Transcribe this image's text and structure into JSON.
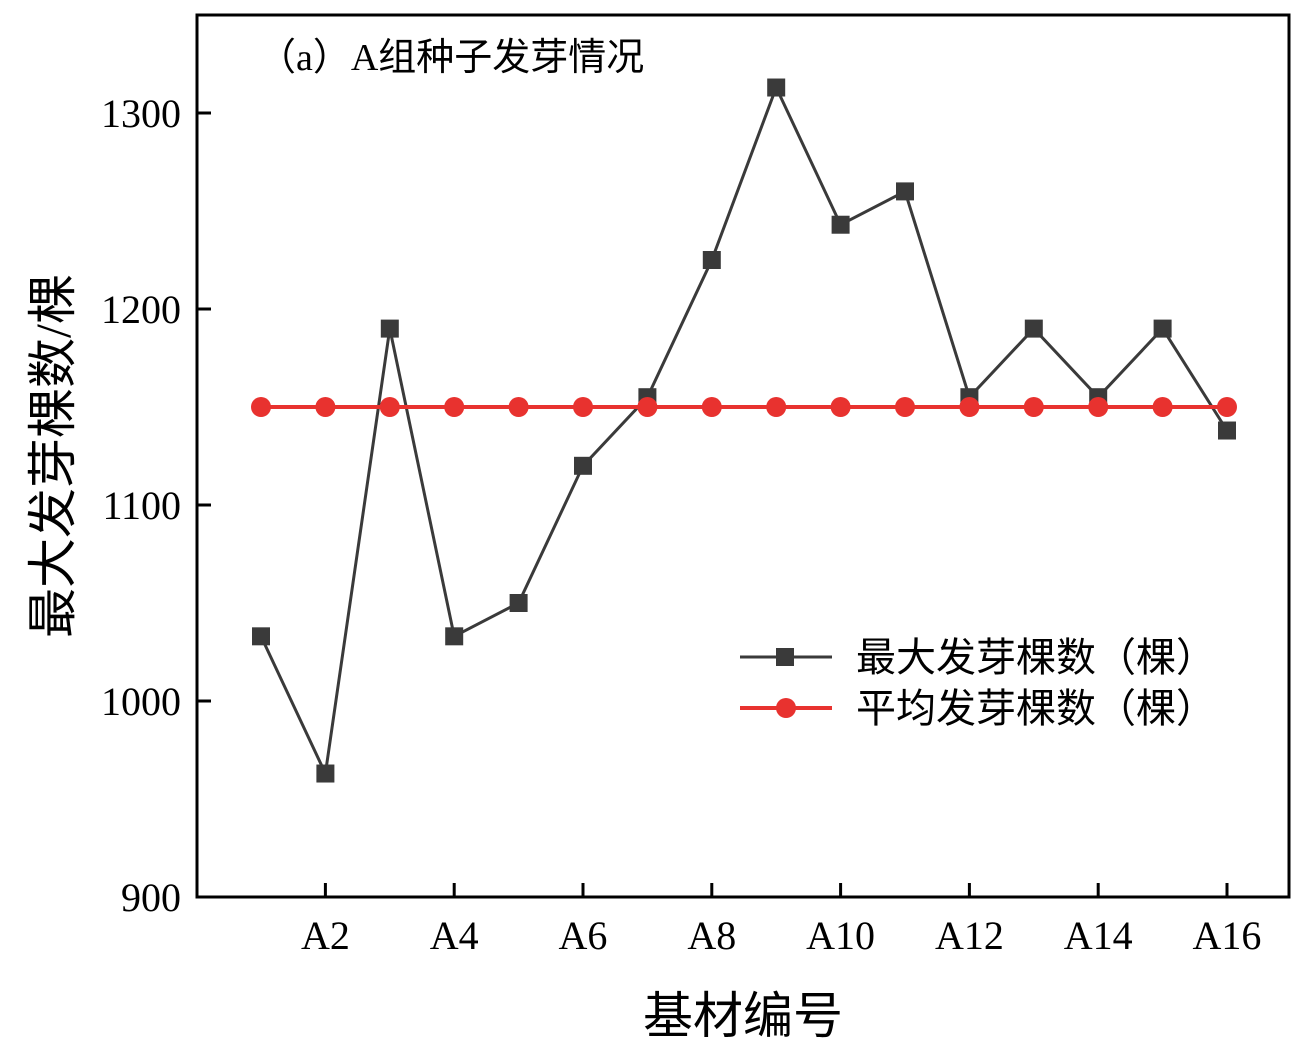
{
  "chart_data": {
    "type": "line",
    "title": "（a）A组种子发芽情况",
    "xlabel": "基材编号",
    "ylabel": "最大发芽棵数/棵",
    "categories": [
      "A1",
      "A2",
      "A3",
      "A4",
      "A5",
      "A6",
      "A7",
      "A8",
      "A9",
      "A10",
      "A11",
      "A12",
      "A13",
      "A14",
      "A15",
      "A16"
    ],
    "x_tick_labels": [
      "A2",
      "A4",
      "A6",
      "A8",
      "A10",
      "A12",
      "A14",
      "A16"
    ],
    "y_ticks": [
      900,
      1000,
      1100,
      1200,
      1300
    ],
    "ylim": [
      900,
      1350
    ],
    "grid": false,
    "legend_position": "center-right",
    "series": [
      {
        "name": "最大发芽棵数（棵）",
        "color": "#3a3a3a",
        "marker": "square",
        "values": [
          1033,
          963,
          1190,
          1033,
          1050,
          1120,
          1155,
          1225,
          1313,
          1243,
          1260,
          1155,
          1190,
          1155,
          1190,
          1138
        ]
      },
      {
        "name": "平均发芽棵数（棵）",
        "color": "#e8322f",
        "marker": "circle",
        "values": [
          1150,
          1150,
          1150,
          1150,
          1150,
          1150,
          1150,
          1150,
          1150,
          1150,
          1150,
          1150,
          1150,
          1150,
          1150,
          1150
        ]
      }
    ]
  }
}
